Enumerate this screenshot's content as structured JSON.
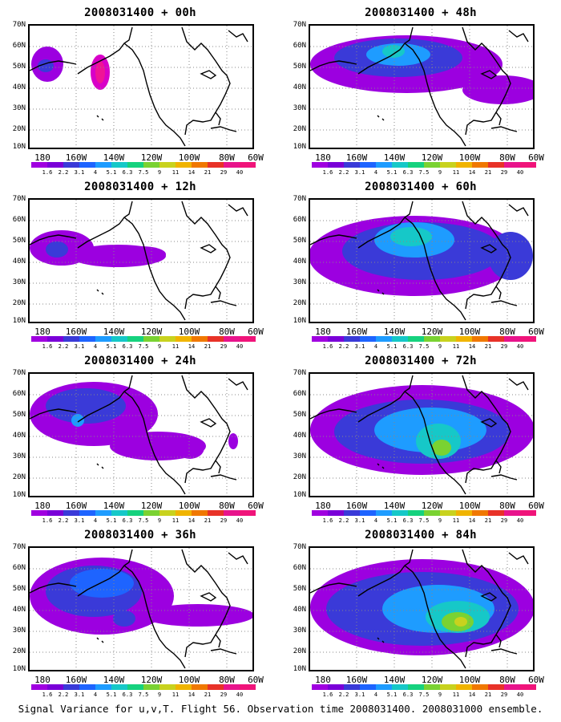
{
  "panel_titles": [
    "2008031400 + 00h",
    "2008031400 + 12h",
    "2008031400 + 24h",
    "2008031400 + 36h",
    "2008031400 + 48h",
    "2008031400 + 60h",
    "2008031400 + 72h",
    "2008031400 + 84h"
  ],
  "lat_labels": [
    "70N",
    "60N",
    "50N",
    "40N",
    "30N",
    "20N",
    "10N"
  ],
  "lon_labels": [
    "180",
    "160W",
    "140W",
    "120W",
    "100W",
    "80W",
    "60W"
  ],
  "colorbar": {
    "labels": [
      "1.6",
      "2.2",
      "3.1",
      "4",
      "5.1",
      "6.3",
      "7.5",
      "9",
      "11",
      "14",
      "21",
      "29",
      "40"
    ],
    "colors": [
      "#a000e0",
      "#7a00d8",
      "#3a3ad8",
      "#1e64ff",
      "#1e9cff",
      "#16c8c8",
      "#16d27e",
      "#7ad232",
      "#c8d21e",
      "#f0b400",
      "#f07800",
      "#e83228",
      "#e8148c",
      "#f0147a"
    ]
  },
  "caption": "Signal Variance for u,v,T. Flight 56. Observation time 2008031400. 2008031000 ensemble."
}
